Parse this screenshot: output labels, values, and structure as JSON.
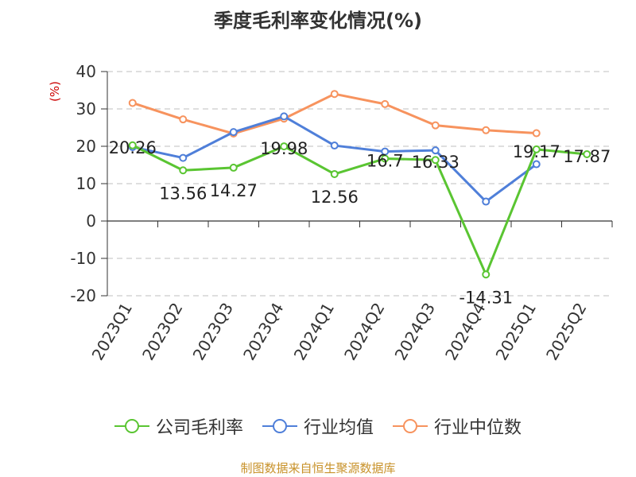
{
  "chart_data": {
    "type": "line",
    "title": "季度毛利率变化情况(%)",
    "ylabel": "(%)",
    "xlabel": "",
    "categories": [
      "2023Q1",
      "2023Q2",
      "2023Q3",
      "2023Q4",
      "2024Q1",
      "2024Q2",
      "2024Q3",
      "2024Q4",
      "2025Q1",
      "2025Q2"
    ],
    "ylim": [
      -20,
      40
    ],
    "yticks": [
      -20,
      -10,
      0,
      10,
      20,
      30,
      40
    ],
    "grid": true,
    "legend_position": "bottom",
    "series": [
      {
        "name": "公司毛利率",
        "color": "#5ac532",
        "values": [
          20.26,
          13.56,
          14.27,
          19.98,
          12.56,
          16.7,
          16.33,
          -14.31,
          19.17,
          17.87
        ],
        "labels": [
          "20.26",
          "13.56",
          "14.27",
          "19.98",
          "12.56",
          "16.7",
          "16.33",
          "-14.31",
          "19.17",
          "17.87"
        ]
      },
      {
        "name": "行业均值",
        "color": "#4f7fd9",
        "values": [
          19.8,
          16.9,
          23.8,
          28.0,
          20.2,
          18.6,
          18.9,
          5.2,
          15.2,
          null
        ],
        "labels": null
      },
      {
        "name": "行业中位数",
        "color": "#f7935e",
        "values": [
          31.6,
          27.2,
          23.4,
          27.4,
          34.0,
          31.3,
          25.6,
          24.3,
          23.5,
          null
        ],
        "labels": null
      }
    ]
  },
  "source": {
    "text": "制图数据来自恒生聚源数据库",
    "color": "#c8922a"
  }
}
